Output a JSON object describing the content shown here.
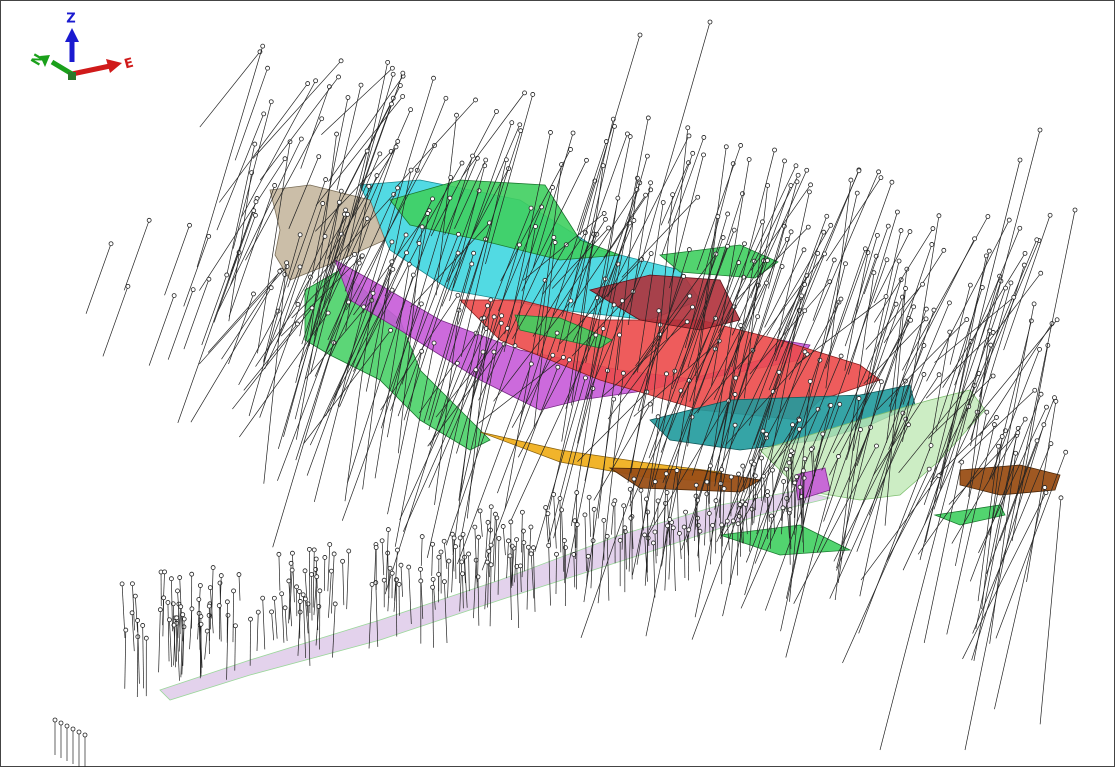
{
  "axes": {
    "z": "Z",
    "n": "N",
    "e": "E"
  }
}
